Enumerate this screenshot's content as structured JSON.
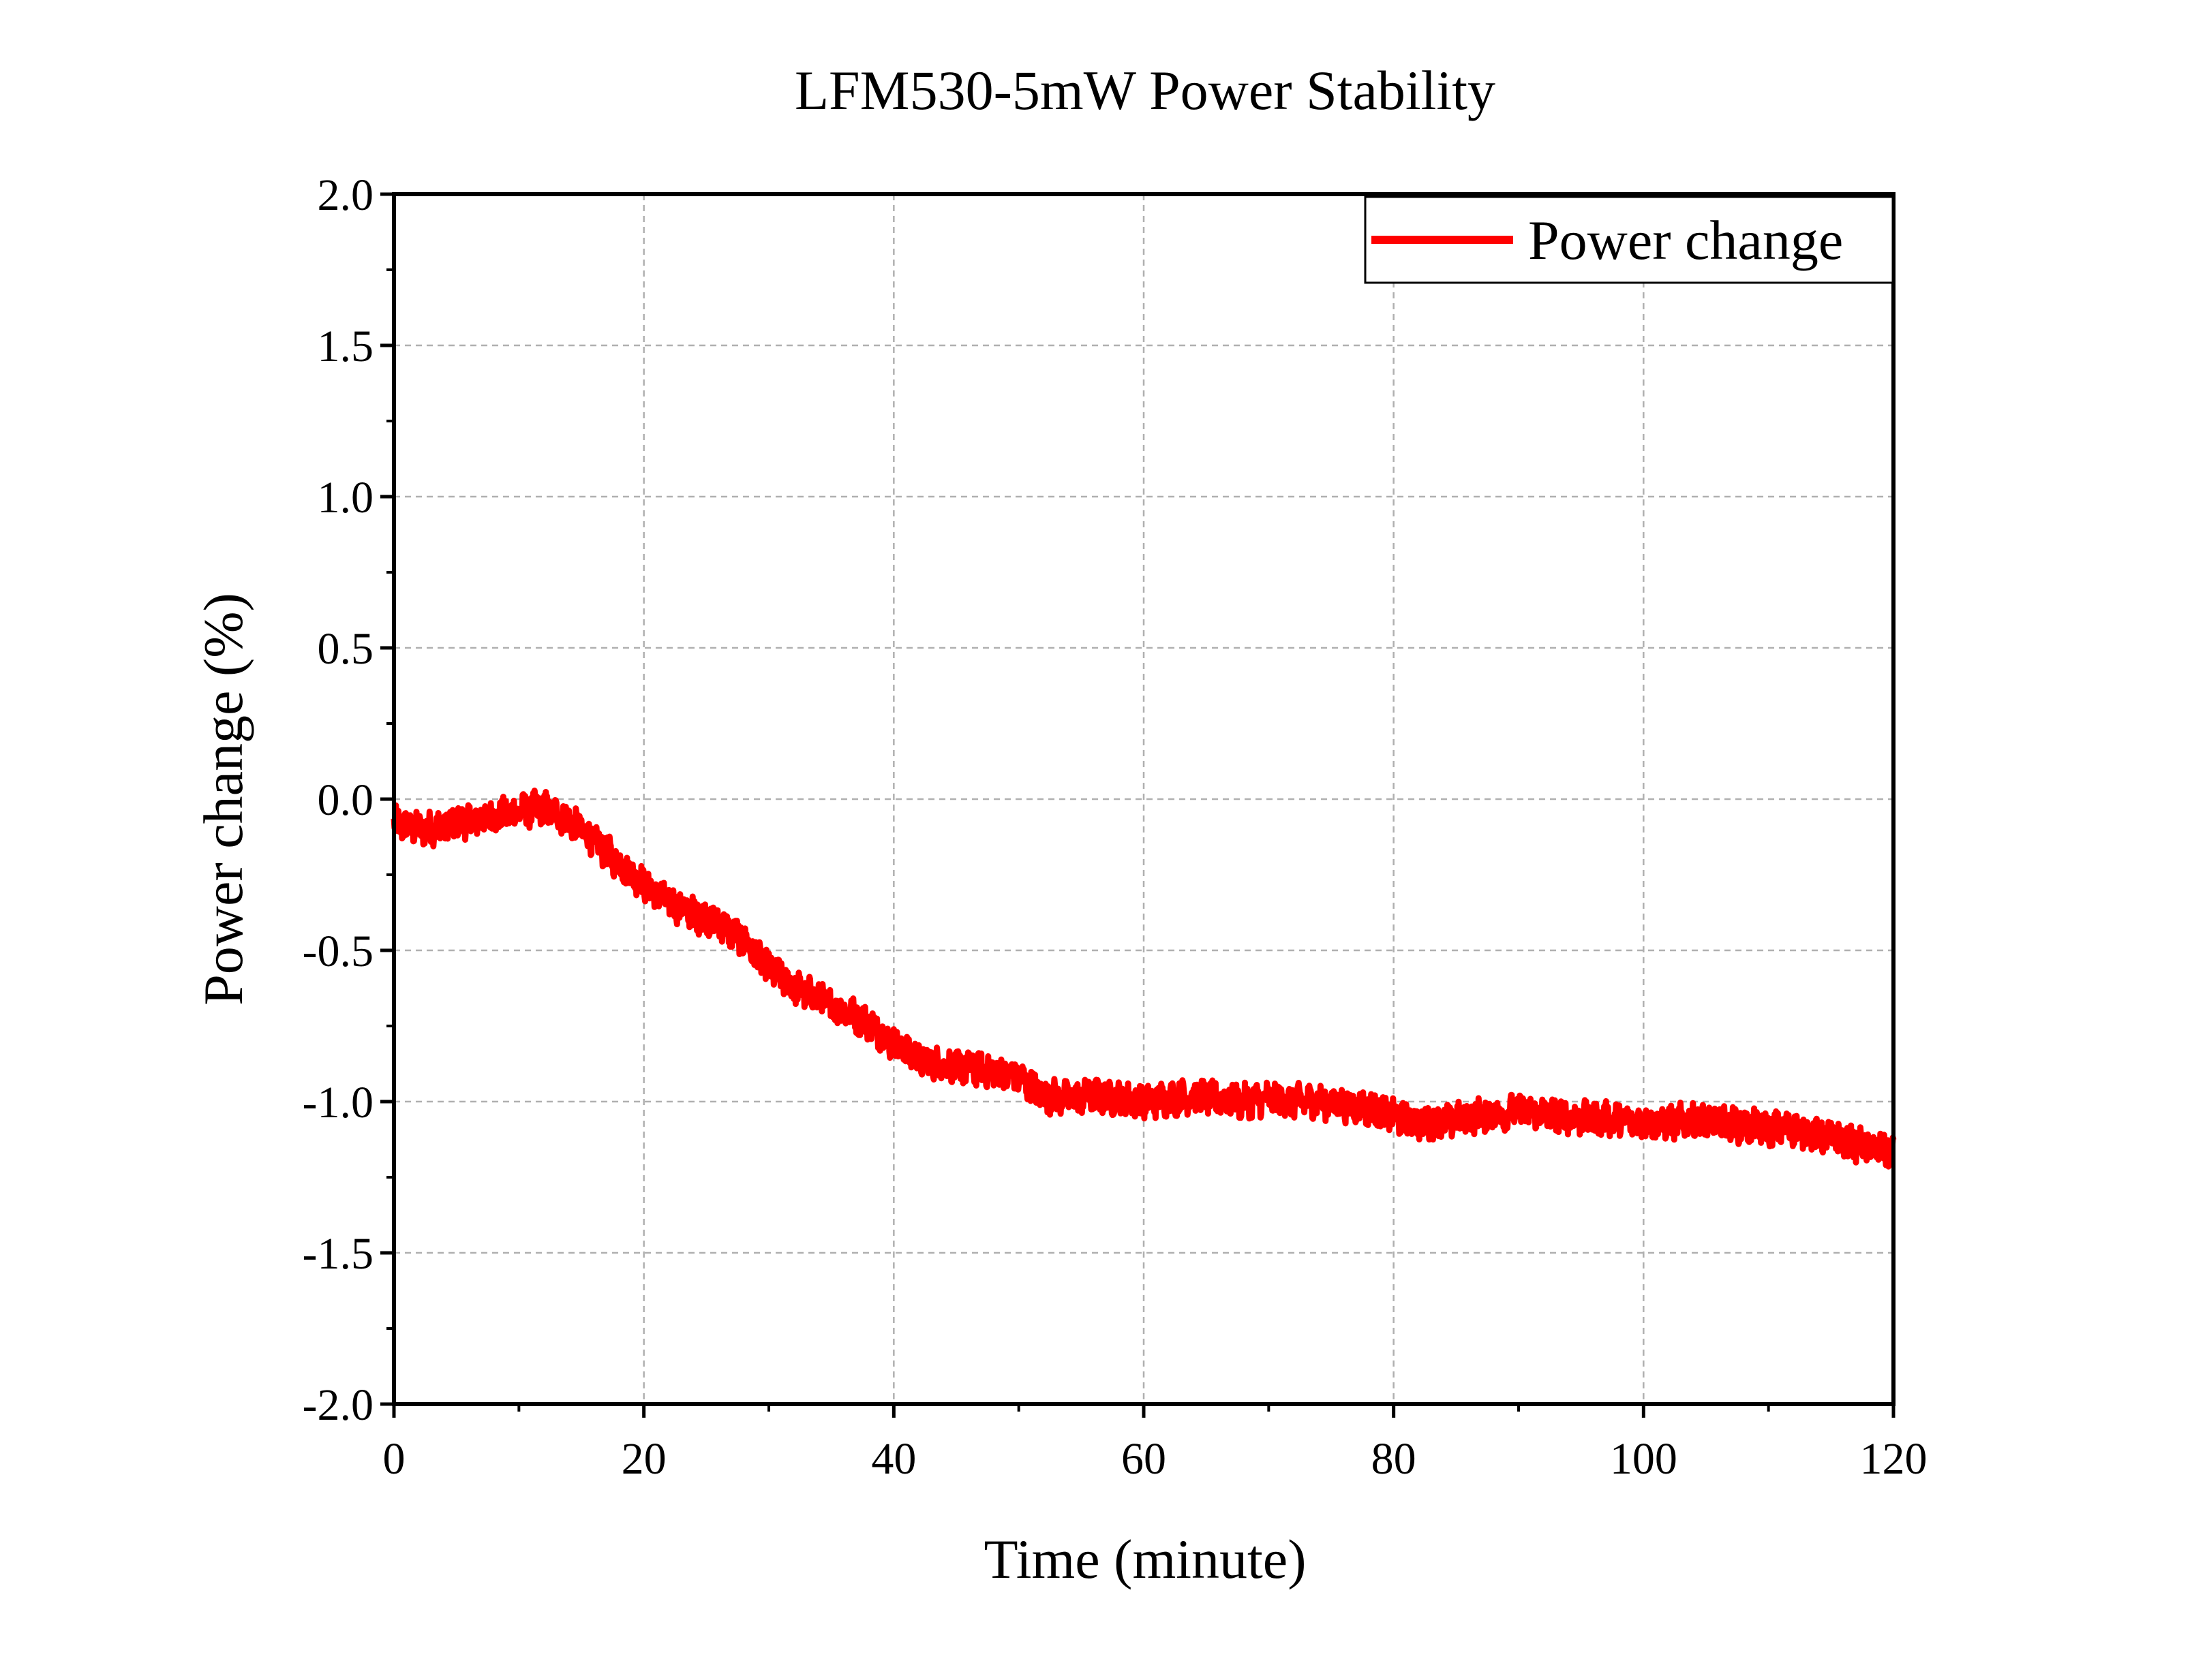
{
  "chart_data": {
    "type": "line",
    "title": "LFM530-5mW Power Stability",
    "xlabel": "Time (minute)",
    "ylabel": "Power change (%)",
    "xlim": [
      0,
      120
    ],
    "ylim": [
      -2.0,
      2.0
    ],
    "x_ticks": [
      "0",
      "20",
      "40",
      "60",
      "80",
      "100",
      "120"
    ],
    "y_ticks": [
      "2.0",
      "1.5",
      "1.0",
      "0.5",
      "0.0",
      "-0.5",
      "-1.0",
      "-1.5",
      "-2.0"
    ],
    "grid": true,
    "legend_position": "top-right",
    "series": [
      {
        "name": "Power change",
        "color": "#ff0000",
        "noise_amplitude": 0.05,
        "x": [
          0,
          2,
          4,
          6,
          8,
          10,
          12,
          14,
          16,
          18,
          20,
          22,
          24,
          26,
          28,
          30,
          32,
          34,
          36,
          38,
          40,
          42,
          44,
          46,
          48,
          50,
          52,
          54,
          56,
          58,
          60,
          62,
          64,
          66,
          68,
          70,
          72,
          74,
          76,
          78,
          80,
          82,
          84,
          86,
          88,
          90,
          92,
          94,
          96,
          98,
          100,
          102,
          104,
          106,
          108,
          110,
          112,
          114,
          116,
          118,
          120
        ],
        "y": [
          -0.08,
          -0.1,
          -0.09,
          -0.07,
          -0.06,
          -0.04,
          -0.03,
          -0.07,
          -0.14,
          -0.21,
          -0.28,
          -0.34,
          -0.38,
          -0.41,
          -0.47,
          -0.56,
          -0.62,
          -0.66,
          -0.7,
          -0.74,
          -0.81,
          -0.86,
          -0.88,
          -0.89,
          -0.9,
          -0.92,
          -0.98,
          -0.99,
          -0.98,
          -0.99,
          -1.0,
          -0.99,
          -0.98,
          -0.99,
          -1.0,
          -0.99,
          -1.0,
          -1.0,
          -1.01,
          -1.02,
          -1.05,
          -1.07,
          -1.07,
          -1.05,
          -1.04,
          -1.03,
          -1.04,
          -1.05,
          -1.06,
          -1.06,
          -1.07,
          -1.07,
          -1.06,
          -1.07,
          -1.08,
          -1.09,
          -1.09,
          -1.11,
          -1.13,
          -1.15,
          -1.17
        ]
      }
    ]
  }
}
